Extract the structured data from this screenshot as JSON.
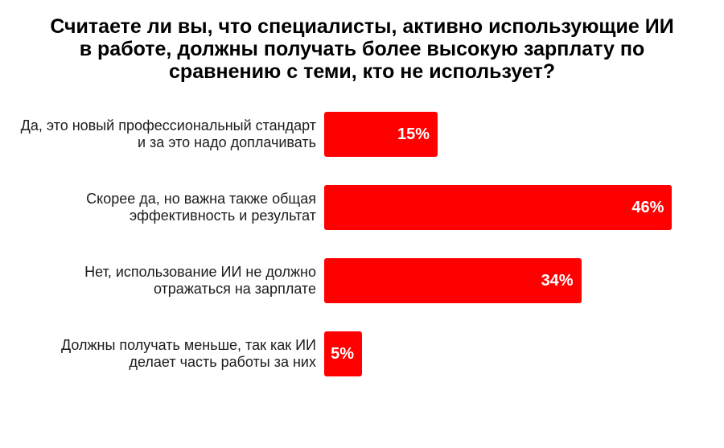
{
  "title": {
    "text": "Считаете ли вы, что специалисты, активно использующие ИИ в работе, должны получать более высокую зарплату по сравнению с теми, кто не использует?",
    "lines": [
      "Считаете ли вы, что специалисты, активно использующие ИИ",
      "в работе, должны получать более высокую зарплату по",
      "сравнению с теми, кто не использует?"
    ]
  },
  "chart_data": {
    "type": "bar",
    "orientation": "horizontal",
    "title": "Считаете ли вы, что специалисты, активно использующие ИИ в работе, должны получать более высокую зарплату по сравнению с теми, кто не использует?",
    "categories": [
      "Да, это новый профессиональный стандарт и за это надо доплачивать",
      "Скорее да, но важна также общая эффективность и результат",
      "Нет, использование ИИ не должно отражаться на зарплате",
      "Должны получать меньше, так как ИИ делает часть работы за них"
    ],
    "category_lines": [
      [
        "Да, это новый профессиональный стандарт",
        "и за это надо доплачивать"
      ],
      [
        "Скорее да, но важна также общая",
        "эффективность и результат"
      ],
      [
        "Нет, использование ИИ не должно",
        "отражаться на зарплате"
      ],
      [
        "Должны получать меньше, так как ИИ",
        "делает часть работы за них"
      ]
    ],
    "values": [
      15,
      46,
      34,
      5
    ],
    "value_labels": [
      "15%",
      "46%",
      "34%",
      "5%"
    ],
    "xlim": [
      0,
      50
    ],
    "grid": false,
    "legend": false,
    "bar_color": "#ff0000",
    "value_label_color": "#ffffff",
    "category_label_color": "#1c1c1c",
    "title_color": "#000000",
    "background": "#ffffff"
  }
}
